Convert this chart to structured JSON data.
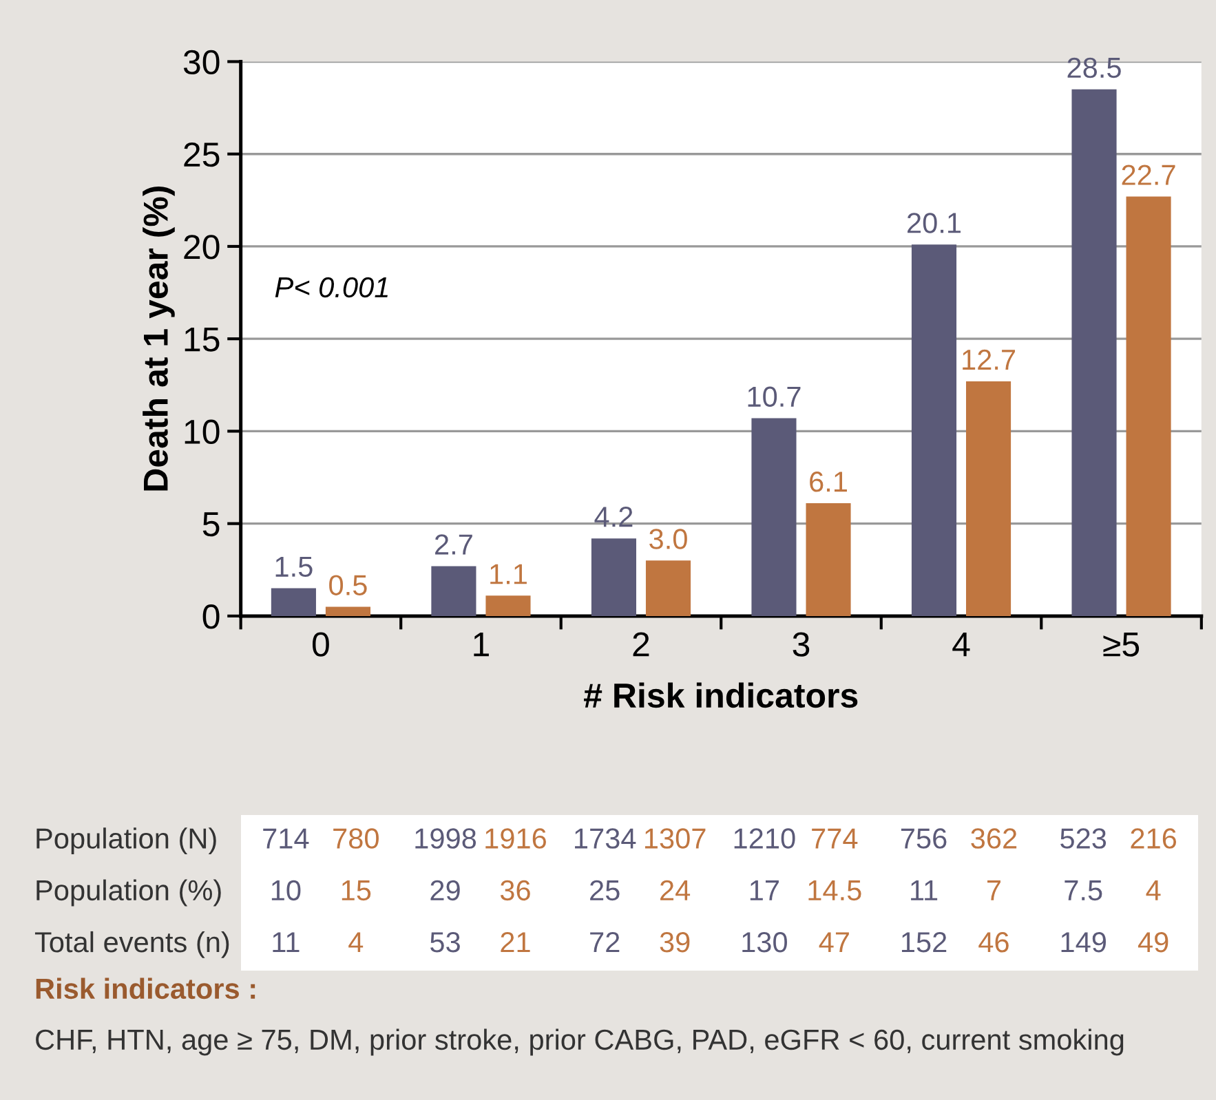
{
  "chart_data": {
    "type": "bar",
    "xlabel": "# Risk indicators",
    "ylabel": "Death at 1 year (%)",
    "categories": [
      "0",
      "1",
      "2",
      "3",
      "4",
      "≥5"
    ],
    "series": [
      {
        "color": "#5b5a78",
        "values": [
          1.5,
          2.7,
          4.2,
          10.7,
          20.1,
          28.5
        ],
        "value_labels": [
          "1.5",
          "2.7",
          "4.2",
          "10.7",
          "20.1",
          "28.5"
        ]
      },
      {
        "color": "#c07640",
        "values": [
          0.5,
          1.1,
          3.0,
          6.1,
          12.7,
          22.7
        ],
        "value_labels": [
          "0.5",
          "1.1",
          "3.0",
          "6.1",
          "12.7",
          "22.7"
        ]
      }
    ],
    "ylim": [
      0,
      30
    ],
    "yticks": [
      0,
      5,
      10,
      15,
      20,
      25,
      30
    ],
    "grid": "y",
    "annotations": [
      "P< 0.001",
      "Population (N)",
      "714",
      "780",
      "1998",
      "1916",
      "1734",
      "1307",
      "1210",
      "774",
      "756",
      "362",
      "523",
      "216",
      "Population (%)",
      "10",
      "15",
      "29",
      "36",
      "25",
      "24",
      "17",
      "14.5",
      "11",
      "7",
      "7.5",
      "4",
      "Total events (n)",
      "11",
      "4",
      "53",
      "21",
      "72",
      "39",
      "130",
      "47",
      "152",
      "46",
      "149",
      "49",
      "Risk indicators :",
      "CHF, HTN, age ≥ 75, DM, prior stroke, prior CABG, PAD, eGFR < 60, current smoking"
    ]
  }
}
